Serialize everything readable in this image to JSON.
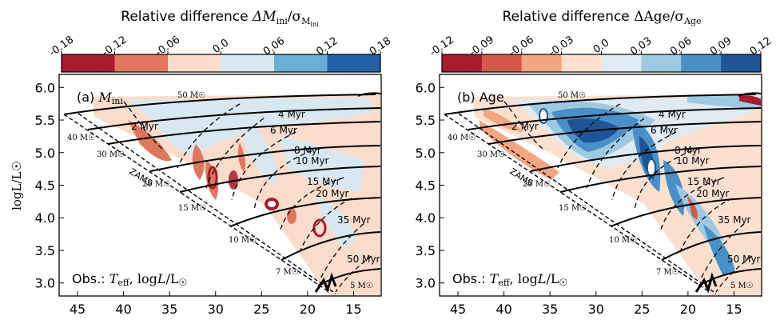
{
  "chart_data": [
    {
      "type": "heatmap",
      "panel_label": "(a) M_ini",
      "colorbar_title": "Relative difference ΔM_ini/σ_{M_ini}",
      "colorbar_ticks": [
        "-0.18",
        "-0.12",
        "-0.06",
        "0.0",
        "0.06",
        "0.12",
        "0.18"
      ],
      "colorbar_colors": [
        "#a51c2d",
        "#e0775e",
        "#fbdccb",
        "#d8e8f2",
        "#6aaed6",
        "#2260a8"
      ],
      "xlim": [
        47,
        12
      ],
      "ylim": [
        2.8,
        6.2
      ],
      "xticks": [
        45,
        40,
        35,
        30,
        25,
        20,
        15
      ],
      "yticks": [
        3.0,
        3.5,
        4.0,
        4.5,
        5.0,
        5.5,
        6.0
      ],
      "xlabel": "",
      "ylabel": "logL/L☉",
      "obs_label": "Obs.: T_eff, logL/L☉",
      "zams_label": "ZAMS",
      "mass_labels": [
        "50 M☉",
        "40 M☉",
        "30 M☉",
        "20 M☉",
        "15 M☉",
        "10 M☉",
        "7 M☉",
        "5 M☉"
      ],
      "isochrone_labels": [
        "2 Myr",
        "4 Myr",
        "6 Myr",
        "8 Myr",
        "10 Myr",
        "15 Myr",
        "20 Myr",
        "35 Myr",
        "50 Myr"
      ]
    },
    {
      "type": "heatmap",
      "panel_label": "(b) Age",
      "colorbar_title": "Relative difference ΔAge/σ_Age",
      "colorbar_ticks": [
        "-0.12",
        "-0.09",
        "-0.06",
        "-0.03",
        "0.0",
        "0.03",
        "0.06",
        "0.09",
        "0.12"
      ],
      "colorbar_colors": [
        "#a51c2d",
        "#d35a4a",
        "#f4a582",
        "#fbe0d0",
        "#dfeaf3",
        "#9ecae1",
        "#4a90c8",
        "#1f5596"
      ],
      "xlim": [
        47,
        12
      ],
      "ylim": [
        2.8,
        6.2
      ],
      "xticks": [
        45,
        40,
        35,
        30,
        25,
        20,
        15
      ],
      "yticks": [
        3.0,
        3.5,
        4.0,
        4.5,
        5.0,
        5.5,
        6.0
      ],
      "xlabel": "",
      "ylabel": "",
      "obs_label": "Obs.: T_eff, logL/L☉",
      "zams_label": "ZAMS",
      "mass_labels": [
        "50 M☉",
        "40 M☉",
        "30 M☉",
        "20 M☉",
        "15 M☉",
        "10 M☉",
        "7 M☉",
        "5 M☉"
      ],
      "isochrone_labels": [
        "2 Myr",
        "4 Myr",
        "6 Myr",
        "8 Myr",
        "10 Myr",
        "15 Myr",
        "20 Myr",
        "35 Myr",
        "50 Myr"
      ]
    }
  ],
  "figure": {
    "ylabel_text": "logL/L☉"
  }
}
